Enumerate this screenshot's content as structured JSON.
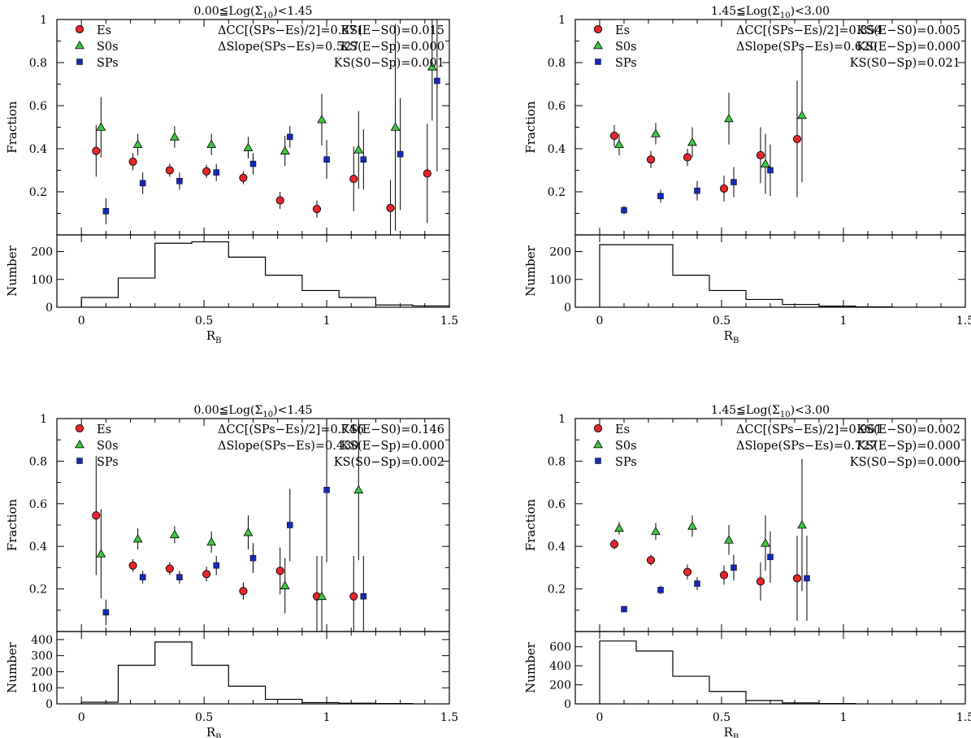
{
  "colors": {
    "Es": "#e8262a",
    "S0s": "#3ec83e",
    "SPs": "#1828b4",
    "axis": "#000000"
  },
  "chart_data": [
    {
      "type": "scatter",
      "title": "0.00≦Log(Σ10)<1.45",
      "title_parts": [
        "0.00≦Log(Σ",
        "10",
        ")<1.45"
      ],
      "ylabel": "Fraction",
      "hist_ylabel": "Number",
      "xlabel": "RB",
      "xlabel_parts": [
        "R",
        "B"
      ],
      "xlim": [
        -0.1,
        1.5
      ],
      "ylim": [
        0,
        1
      ],
      "yticks": [
        "0.2",
        "0.4",
        "0.6",
        "0.8",
        "1"
      ],
      "xticks": [
        "0",
        "0.5",
        "1",
        "1.5"
      ],
      "legend": [
        "Es",
        "S0s",
        "SPs"
      ],
      "stats": [
        "ΔCC[(SPs−Es)/2]=0.871",
        "ΔSlope(SPs−Es)=0.527",
        "KS(E−S0)=0.015",
        "KS(E−Sp)=0.000",
        "KS(S0−Sp)=0.001"
      ],
      "series": [
        {
          "name": "Es",
          "marker": "circle",
          "points": [
            [
              0.06,
              0.39,
              0.12
            ],
            [
              0.21,
              0.34,
              0.04
            ],
            [
              0.36,
              0.3,
              0.03
            ],
            [
              0.51,
              0.295,
              0.03
            ],
            [
              0.66,
              0.265,
              0.03
            ],
            [
              0.81,
              0.16,
              0.04
            ],
            [
              0.96,
              0.12,
              0.04
            ],
            [
              1.11,
              0.26,
              0.15
            ],
            [
              1.26,
              0.125,
              0.13
            ],
            [
              1.41,
              0.285,
              0.23
            ]
          ]
        },
        {
          "name": "S0s",
          "marker": "triangle",
          "points": [
            [
              0.08,
              0.5,
              0.14
            ],
            [
              0.23,
              0.42,
              0.05
            ],
            [
              0.38,
              0.455,
              0.05
            ],
            [
              0.53,
              0.42,
              0.05
            ],
            [
              0.68,
              0.405,
              0.05
            ],
            [
              0.83,
              0.39,
              0.07
            ],
            [
              0.98,
              0.535,
              0.12
            ],
            [
              1.13,
              0.395,
              0.18
            ],
            [
              1.28,
              0.5,
              0.48
            ],
            [
              1.43,
              0.78,
              0.25
            ]
          ]
        },
        {
          "name": "SPs",
          "marker": "square",
          "points": [
            [
              0.1,
              0.11,
              0.06
            ],
            [
              0.25,
              0.24,
              0.05
            ],
            [
              0.4,
              0.25,
              0.04
            ],
            [
              0.55,
              0.29,
              0.04
            ],
            [
              0.7,
              0.33,
              0.05
            ],
            [
              0.85,
              0.455,
              0.05
            ],
            [
              1.0,
              0.35,
              0.09
            ],
            [
              1.15,
              0.35,
              0.14
            ],
            [
              1.3,
              0.375,
              0.26
            ],
            [
              1.45,
              0.715,
              0.42
            ]
          ]
        }
      ],
      "histogram": {
        "ylim": [
          0,
          260
        ],
        "yticks": [
          "0",
          "100",
          "200"
        ],
        "ytick_values": [
          0,
          100,
          200
        ],
        "bins": [
          [
            0,
            0.15,
            35
          ],
          [
            0.15,
            0.3,
            105
          ],
          [
            0.3,
            0.45,
            230
          ],
          [
            0.45,
            0.6,
            235
          ],
          [
            0.6,
            0.75,
            180
          ],
          [
            0.75,
            0.9,
            115
          ],
          [
            0.9,
            1.05,
            60
          ],
          [
            1.05,
            1.2,
            35
          ],
          [
            1.2,
            1.35,
            8
          ],
          [
            1.35,
            1.5,
            5
          ]
        ]
      }
    },
    {
      "type": "scatter",
      "title": "1.45≦Log(Σ10)<3.00",
      "title_parts": [
        "1.45≦Log(Σ",
        "10",
        ")<3.00"
      ],
      "ylabel": "Fraction",
      "hist_ylabel": "Number",
      "xlabel": "RB",
      "xlabel_parts": [
        "R",
        "B"
      ],
      "xlim": [
        -0.1,
        1.5
      ],
      "ylim": [
        0,
        1
      ],
      "yticks": [
        "0.2",
        "0.4",
        "0.6",
        "0.8",
        "1"
      ],
      "xticks": [
        "0",
        "0.5",
        "1",
        "1.5"
      ],
      "legend": [
        "Es",
        "S0s",
        "SPs"
      ],
      "stats": [
        "ΔCC[(SPs−Es)/2]=0.854",
        "ΔSlope(SPs−Es)=0.620",
        "KS(E−S0)=0.005",
        "KS(E−Sp)=0.000",
        "KS(S0−Sp)=0.021"
      ],
      "series": [
        {
          "name": "Es",
          "marker": "circle",
          "points": [
            [
              0.06,
              0.46,
              0.05
            ],
            [
              0.21,
              0.35,
              0.04
            ],
            [
              0.36,
              0.36,
              0.04
            ],
            [
              0.51,
              0.215,
              0.06
            ],
            [
              0.66,
              0.37,
              0.13
            ],
            [
              0.81,
              0.445,
              0.27
            ]
          ]
        },
        {
          "name": "S0s",
          "marker": "triangle",
          "points": [
            [
              0.08,
              0.42,
              0.05
            ],
            [
              0.23,
              0.47,
              0.05
            ],
            [
              0.38,
              0.43,
              0.07
            ],
            [
              0.53,
              0.54,
              0.12
            ],
            [
              0.68,
              0.33,
              0.14
            ],
            [
              0.83,
              0.555,
              0.31
            ]
          ]
        },
        {
          "name": "SPs",
          "marker": "square",
          "points": [
            [
              0.1,
              0.115,
              0.02
            ],
            [
              0.25,
              0.18,
              0.03
            ],
            [
              0.4,
              0.205,
              0.045
            ],
            [
              0.55,
              0.245,
              0.07
            ],
            [
              0.7,
              0.3,
              0.12
            ]
          ]
        }
      ],
      "histogram": {
        "ylim": [
          0,
          260
        ],
        "yticks": [
          "0",
          "100",
          "200"
        ],
        "ytick_values": [
          0,
          100,
          200
        ],
        "bins": [
          [
            0,
            0.15,
            225
          ],
          [
            0.15,
            0.3,
            225
          ],
          [
            0.3,
            0.45,
            115
          ],
          [
            0.45,
            0.6,
            60
          ],
          [
            0.6,
            0.75,
            28
          ],
          [
            0.75,
            0.9,
            10
          ],
          [
            0.9,
            1.05,
            4
          ],
          [
            1.05,
            1.2,
            1
          ]
        ]
      }
    },
    {
      "type": "scatter",
      "title": "0.00≦Log(Σ10)<1.45",
      "title_parts": [
        "0.00≦Log(Σ",
        "10",
        ")<1.45"
      ],
      "ylabel": "Fraction",
      "hist_ylabel": "Number",
      "xlabel": "RB",
      "xlabel_parts": [
        "R",
        "B"
      ],
      "xlim": [
        -0.1,
        1.5
      ],
      "ylim": [
        0,
        1
      ],
      "yticks": [
        "0.2",
        "0.4",
        "0.6",
        "0.8",
        "1"
      ],
      "xticks": [
        "0",
        "0.5",
        "1",
        "1.5"
      ],
      "legend": [
        "Es",
        "S0s",
        "SPs"
      ],
      "stats": [
        "ΔCC[(SPs−Es)/2]=0.746",
        "ΔSlope(SPs−Es)=0.430",
        "KS(E−S0)=0.146",
        "KS(E−Sp)=0.000",
        "KS(S0−Sp)=0.002"
      ],
      "series": [
        {
          "name": "Es",
          "marker": "circle",
          "points": [
            [
              0.06,
              0.545,
              0.28
            ],
            [
              0.21,
              0.31,
              0.03
            ],
            [
              0.36,
              0.295,
              0.03
            ],
            [
              0.51,
              0.27,
              0.035
            ],
            [
              0.66,
              0.19,
              0.04
            ],
            [
              0.81,
              0.285,
              0.11
            ],
            [
              0.96,
              0.165,
              0.19
            ],
            [
              1.11,
              0.165,
              0.19
            ]
          ]
        },
        {
          "name": "S0s",
          "marker": "triangle",
          "points": [
            [
              0.08,
              0.365,
              0.21
            ],
            [
              0.23,
              0.435,
              0.05
            ],
            [
              0.38,
              0.455,
              0.04
            ],
            [
              0.53,
              0.42,
              0.05
            ],
            [
              0.68,
              0.465,
              0.08
            ],
            [
              0.83,
              0.215,
              0.13
            ],
            [
              0.98,
              0.165,
              0.19
            ],
            [
              1.13,
              0.665,
              0.33
            ]
          ]
        },
        {
          "name": "SPs",
          "marker": "square",
          "points": [
            [
              0.1,
              0.09,
              0.06
            ],
            [
              0.25,
              0.255,
              0.03
            ],
            [
              0.4,
              0.255,
              0.03
            ],
            [
              0.55,
              0.31,
              0.045
            ],
            [
              0.7,
              0.345,
              0.07
            ],
            [
              0.85,
              0.5,
              0.17
            ],
            [
              1.0,
              0.665,
              0.34
            ],
            [
              1.15,
              0.165,
              0.19
            ]
          ]
        }
      ],
      "histogram": {
        "ylim": [
          0,
          450
        ],
        "yticks": [
          "0",
          "100",
          "200",
          "300",
          "400"
        ],
        "ytick_values": [
          0,
          100,
          200,
          300,
          400
        ],
        "bins": [
          [
            0,
            0.15,
            10
          ],
          [
            0.15,
            0.3,
            240
          ],
          [
            0.3,
            0.45,
            385
          ],
          [
            0.45,
            0.6,
            240
          ],
          [
            0.6,
            0.75,
            110
          ],
          [
            0.75,
            0.9,
            28
          ],
          [
            0.9,
            1.05,
            8
          ],
          [
            1.05,
            1.2,
            4
          ],
          [
            1.2,
            1.35,
            2
          ]
        ]
      }
    },
    {
      "type": "scatter",
      "title": "1.45≦Log(Σ10)<3.00",
      "title_parts": [
        "1.45≦Log(Σ",
        "10",
        ")<3.00"
      ],
      "ylabel": "Fraction",
      "hist_ylabel": "Number",
      "xlabel": "RB",
      "xlabel_parts": [
        "R",
        "B"
      ],
      "xlim": [
        -0.1,
        1.5
      ],
      "ylim": [
        0,
        1
      ],
      "yticks": [
        "0.2",
        "0.4",
        "0.6",
        "0.8",
        "1"
      ],
      "xticks": [
        "0",
        "0.5",
        "1",
        "1.5"
      ],
      "legend": [
        "Es",
        "S0s",
        "SPs"
      ],
      "stats": [
        "ΔCC[(SPs−Es)/2]=0.961",
        "ΔSlope(SPs−Es)=0.727",
        "KS(E−S0)=0.002",
        "KS(E−Sp)=0.000",
        "KS(S0−Sp)=0.000"
      ],
      "series": [
        {
          "name": "Es",
          "marker": "circle",
          "points": [
            [
              0.06,
              0.41,
              0.025
            ],
            [
              0.21,
              0.335,
              0.025
            ],
            [
              0.36,
              0.28,
              0.035
            ],
            [
              0.51,
              0.265,
              0.045
            ],
            [
              0.66,
              0.235,
              0.09
            ],
            [
              0.81,
              0.25,
              0.2
            ]
          ]
        },
        {
          "name": "S0s",
          "marker": "triangle",
          "points": [
            [
              0.08,
              0.485,
              0.03
            ],
            [
              0.23,
              0.47,
              0.04
            ],
            [
              0.38,
              0.495,
              0.05
            ],
            [
              0.53,
              0.43,
              0.07
            ],
            [
              0.68,
              0.415,
              0.13
            ],
            [
              0.83,
              0.5,
              0.31
            ]
          ]
        },
        {
          "name": "SPs",
          "marker": "square",
          "points": [
            [
              0.1,
              0.105,
              0.01
            ],
            [
              0.25,
              0.195,
              0.02
            ],
            [
              0.4,
              0.225,
              0.03
            ],
            [
              0.55,
              0.3,
              0.06
            ],
            [
              0.7,
              0.35,
              0.12
            ],
            [
              0.85,
              0.25,
              0.2
            ]
          ]
        }
      ],
      "histogram": {
        "ylim": [
          0,
          760
        ],
        "yticks": [
          "0",
          "200",
          "400",
          "600"
        ],
        "ytick_values": [
          0,
          200,
          400,
          600
        ],
        "bins": [
          [
            0,
            0.15,
            660
          ],
          [
            0.15,
            0.3,
            555
          ],
          [
            0.3,
            0.45,
            290
          ],
          [
            0.45,
            0.6,
            130
          ],
          [
            0.6,
            0.75,
            35
          ],
          [
            0.75,
            0.9,
            10
          ],
          [
            0.9,
            1.05,
            3
          ]
        ]
      }
    }
  ]
}
